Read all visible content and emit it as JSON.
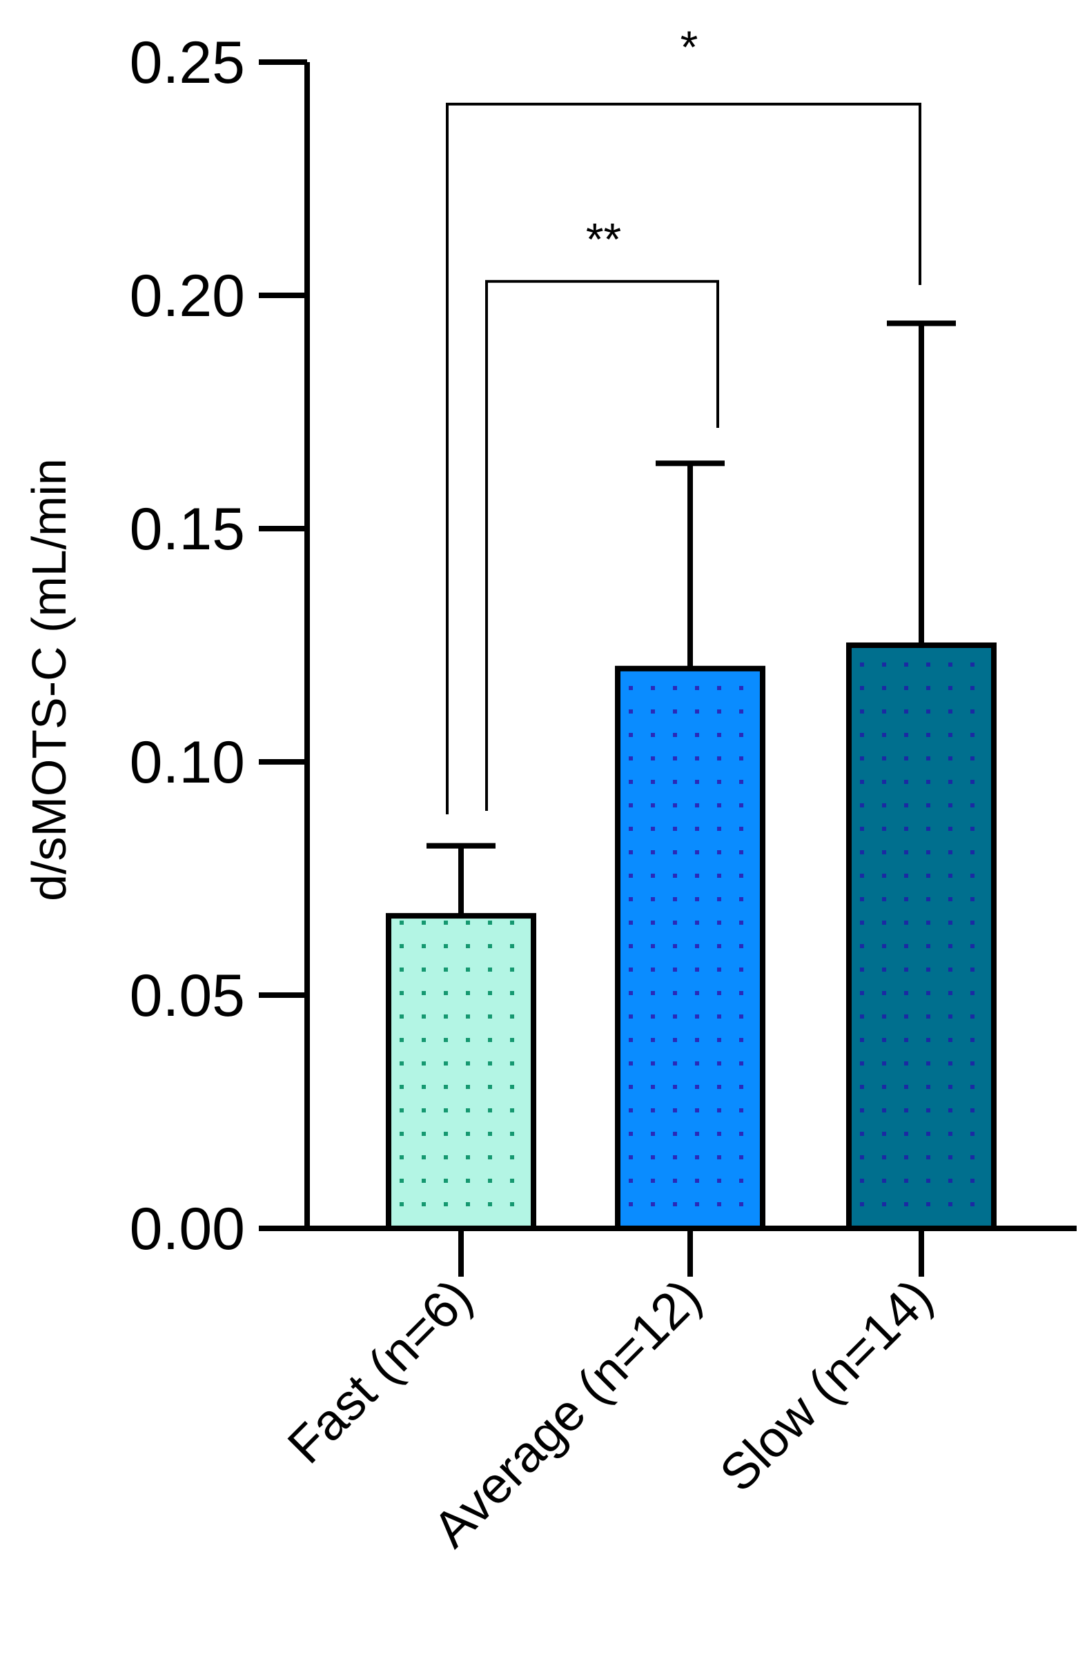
{
  "chart_data": {
    "type": "bar",
    "title": "",
    "xlabel": "",
    "ylabel": "d/sMOTS-C (mL/min",
    "ylim": [
      0,
      0.25
    ],
    "yticks": [
      0.0,
      0.05,
      0.1,
      0.15,
      0.2,
      0.25
    ],
    "ytick_labels": [
      "0.00",
      "0.05",
      "0.10",
      "0.15",
      "0.20",
      "0.25"
    ],
    "categories": [
      "Fast (n=6)",
      "Average (n=12)",
      "Slow (n=14)"
    ],
    "values": [
      0.067,
      0.12,
      0.125
    ],
    "error_upper": [
      0.082,
      0.164,
      0.194
    ],
    "colors": [
      "#b3f5e4",
      "#0a8cff",
      "#006f8e"
    ],
    "dot_colors": [
      "#159870",
      "#2a2ab8",
      "#1b2aa3"
    ],
    "significance": [
      {
        "from": "Fast (n=6)",
        "to": "Average (n=12)",
        "label": "**",
        "y": 0.203
      },
      {
        "from": "Fast (n=6)",
        "to": "Slow (n=14)",
        "label": "*",
        "y": 0.241
      }
    ]
  }
}
